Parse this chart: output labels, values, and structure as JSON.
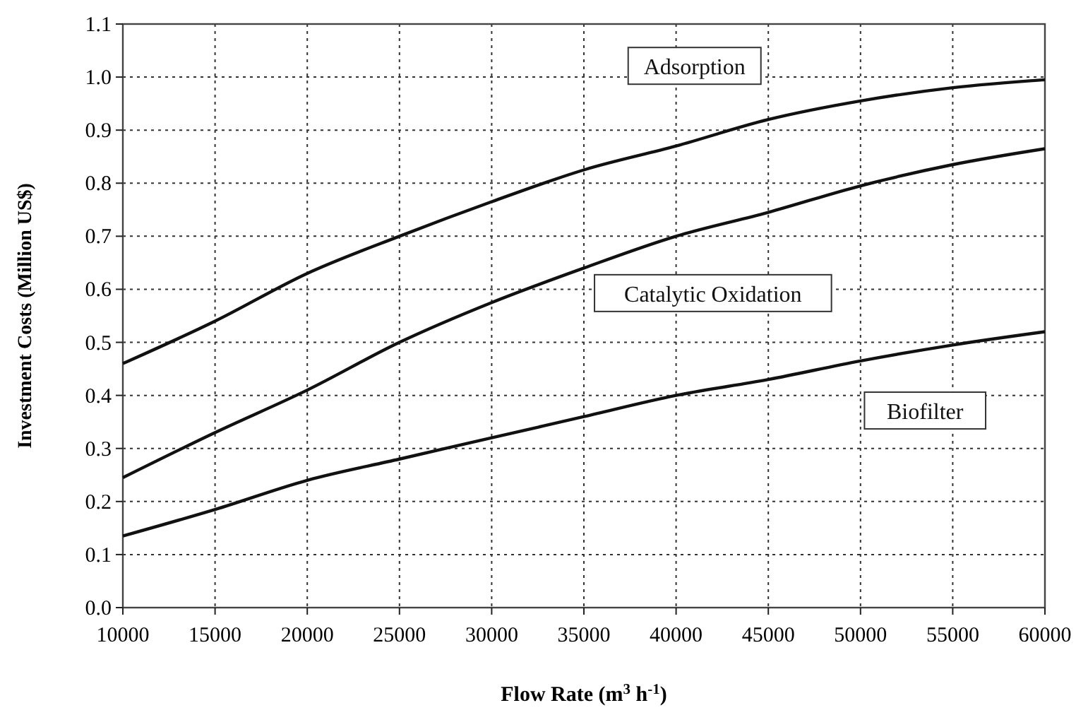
{
  "chart_data": {
    "type": "line",
    "xlabel": "Flow Rate (m$^{3}$ h$^{-1}$)",
    "ylabel": "Investment Costs (Million US$)",
    "x": [
      10000,
      15000,
      20000,
      25000,
      30000,
      35000,
      40000,
      45000,
      50000,
      55000,
      60000
    ],
    "series": [
      {
        "name": "Adsorption",
        "color": "#111111",
        "values": [
          0.46,
          0.54,
          0.63,
          0.7,
          0.765,
          0.825,
          0.87,
          0.92,
          0.955,
          0.98,
          0.995
        ]
      },
      {
        "name": "Catalytic Oxidation",
        "color": "#111111",
        "values": [
          0.245,
          0.33,
          0.41,
          0.5,
          0.575,
          0.64,
          0.7,
          0.745,
          0.795,
          0.835,
          0.865
        ]
      },
      {
        "name": "Biofilter",
        "color": "#111111",
        "values": [
          0.135,
          0.185,
          0.24,
          0.28,
          0.32,
          0.36,
          0.4,
          0.43,
          0.465,
          0.495,
          0.52
        ]
      }
    ],
    "xlim": [
      10000,
      60000
    ],
    "xticks": [
      10000,
      15000,
      20000,
      25000,
      30000,
      35000,
      40000,
      45000,
      50000,
      55000,
      60000
    ],
    "ylim": [
      0,
      1.1
    ],
    "yticks": [
      {
        "value": 0,
        "label": "0.0"
      },
      {
        "value": 0.1,
        "label": "0.1"
      },
      {
        "value": 0.2,
        "label": "0.2"
      },
      {
        "value": 0.3,
        "label": "0.3"
      },
      {
        "value": 0.4,
        "label": "0.4"
      },
      {
        "value": 0.5,
        "label": "0.5"
      },
      {
        "value": 0.6,
        "label": "0.6"
      },
      {
        "value": 0.7,
        "label": "0.7"
      },
      {
        "value": 0.8,
        "label": "0.8"
      },
      {
        "value": 0.9,
        "label": "0.9"
      },
      {
        "value": 1.0,
        "label": "1.0"
      },
      {
        "value": 1.1,
        "label": "1.1"
      }
    ],
    "grid": true,
    "marker": "none",
    "line_style": "solid"
  }
}
